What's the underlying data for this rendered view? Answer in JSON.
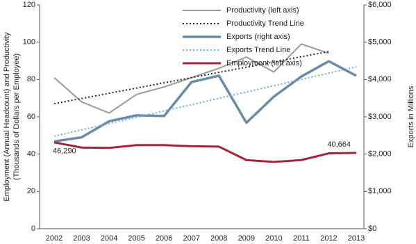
{
  "chart_data": {
    "type": "line",
    "categories": [
      "2002",
      "2003",
      "2004",
      "2005",
      "2006",
      "2007",
      "2008",
      "2009",
      "2010",
      "2011",
      "2012",
      "2013"
    ],
    "ylabel": [
      "Employment (Annual Headcount) and Productivity",
      "(Thousands of Dollars per Employee)"
    ],
    "y2label": "Exports in Millions",
    "ylim": [
      0,
      120
    ],
    "yticks": [
      0,
      20,
      40,
      60,
      80,
      100,
      120
    ],
    "y2lim": [
      0,
      6000
    ],
    "y2ticks": [
      {
        "value": 0,
        "label": "$0"
      },
      {
        "value": 1000,
        "label": "$1,000"
      },
      {
        "value": 2000,
        "label": "$2,000"
      },
      {
        "value": 3000,
        "label": "$3,000"
      },
      {
        "value": 4000,
        "label": "$4,000"
      },
      {
        "value": 5000,
        "label": "$5,000"
      },
      {
        "value": 6000,
        "label": "$6,000"
      }
    ],
    "legend": "upper-left",
    "series": [
      {
        "name": "Productivity (left axis)",
        "color": "#999999",
        "dash": "solid",
        "width": 2,
        "values": [
          81,
          68,
          62,
          72,
          76,
          81,
          86,
          92,
          84,
          99,
          94,
          null
        ]
      },
      {
        "name": "Productivity Trend Line",
        "color": "#222222",
        "dash": "dotted",
        "width": 2,
        "values": [
          67,
          69.8,
          72.6,
          75.4,
          78.2,
          81,
          83.8,
          86.6,
          89.4,
          92.2,
          95,
          null
        ]
      },
      {
        "name": "Exports (right axis)",
        "color": "#6a8ba8",
        "dash": "solid",
        "width": 3.5,
        "axis": "y2",
        "values": [
          2340,
          2450,
          2880,
          3040,
          3020,
          3930,
          4100,
          2840,
          3540,
          4080,
          4490,
          4100
        ]
      },
      {
        "name": "Exports Trend Line",
        "color": "#6fa8d6",
        "dash": "dotted",
        "width": 2,
        "axis": "y2",
        "values": [
          2480,
          2649,
          2818,
          2987,
          3156,
          3325,
          3495,
          3664,
          3833,
          4002,
          4171,
          4340
        ]
      },
      {
        "name": "Employment (left axis)",
        "color": "#a3233a",
        "dash": "solid",
        "width": 3,
        "values": [
          46.29,
          43.5,
          43.3,
          44.8,
          44.8,
          44.2,
          44,
          36.8,
          35.8,
          36.8,
          40.4,
          40.664
        ],
        "value_labels": [
          "46,290",
          null,
          null,
          null,
          null,
          null,
          null,
          null,
          null,
          null,
          null,
          "40,664"
        ]
      }
    ]
  }
}
